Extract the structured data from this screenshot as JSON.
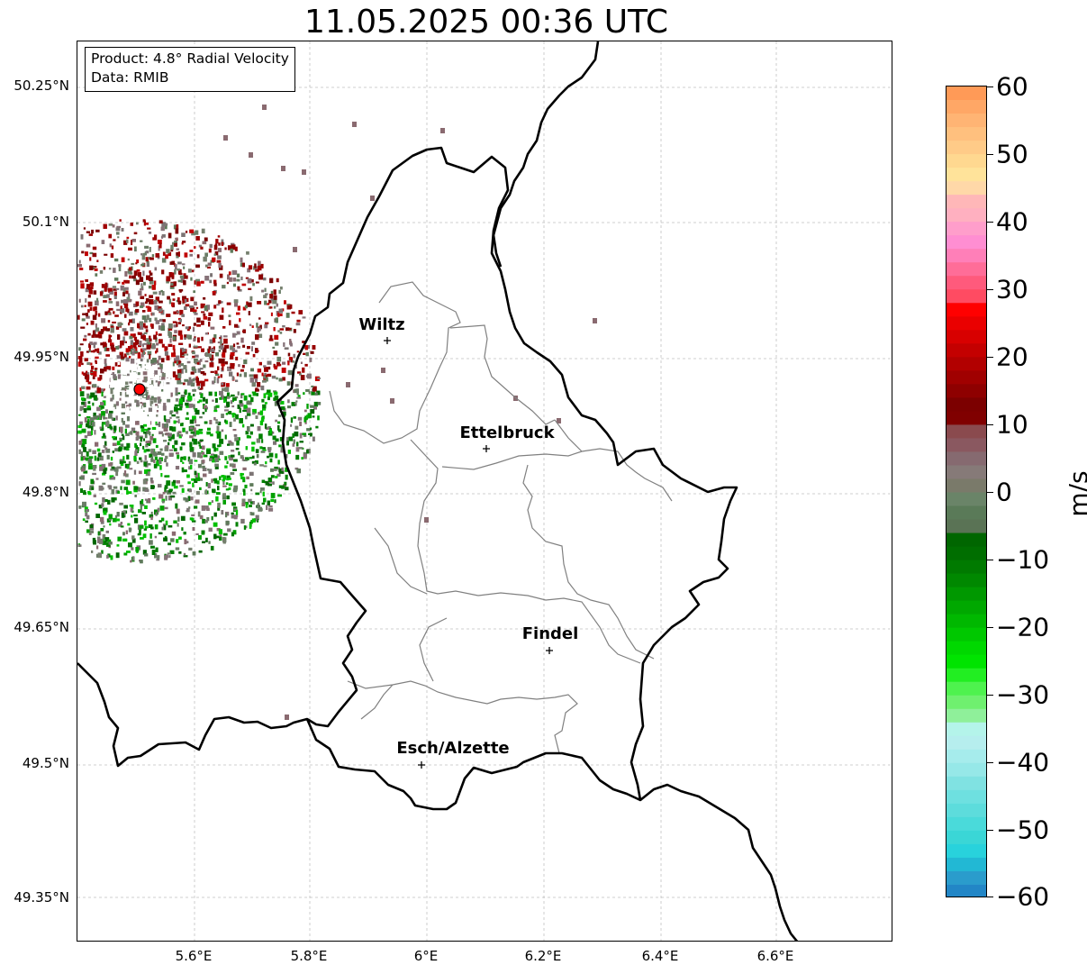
{
  "title": "11.05.2025 00:36 UTC",
  "info": {
    "product": "Product: 4.8° Radial Velocity",
    "data_source": "Data: RMIB"
  },
  "latitude_labels": [
    "50.25°N",
    "50.1°N",
    "49.95°N",
    "49.8°N",
    "49.65°N",
    "49.5°N",
    "49.35°N"
  ],
  "longitude_labels": [
    "5.6°E",
    "5.8°E",
    "6°E",
    "6.2°E",
    "6.4°E",
    "6.6°E"
  ],
  "cities": [
    {
      "name": "Wiltz"
    },
    {
      "name": "Ettelbruck"
    },
    {
      "name": "Findel"
    },
    {
      "name": "Esch/Alzette"
    }
  ],
  "colorbar": {
    "unit": "m/s",
    "ticks": [
      "60",
      "50",
      "40",
      "30",
      "20",
      "10",
      "0",
      "−10",
      "−20",
      "−30",
      "−40",
      "−50",
      "−60"
    ],
    "range": [
      -60,
      60
    ],
    "colors_top_to_bottom": [
      "#ff9a57",
      "#ffa766",
      "#ffb474",
      "#ffc07e",
      "#ffcb88",
      "#ffd890",
      "#ffe39a",
      "#ffd8a8",
      "#ffb7b8",
      "#ffb0c0",
      "#ff9ecb",
      "#ff8ed2",
      "#ff7fb8",
      "#ff6d98",
      "#ff5a7c",
      "#ff4b62",
      "#ff0000",
      "#ea0000",
      "#d80000",
      "#c40000",
      "#b20000",
      "#a00000",
      "#8e0000",
      "#7c0000",
      "#800000",
      "#8a4a4e",
      "#8a5860",
      "#866a70",
      "#867a78",
      "#7a7a6a",
      "#6a8468",
      "#5a7a58",
      "#5a7355",
      "#006600",
      "#006e00",
      "#007a00",
      "#008800",
      "#009800",
      "#00a800",
      "#00b800",
      "#00c800",
      "#00d800",
      "#00e400",
      "#22ee22",
      "#4ef24e",
      "#6ff06f",
      "#8ff09a",
      "#b4f4ea",
      "#b6eeee",
      "#a6ecec",
      "#96e8e8",
      "#80e2e2",
      "#6ee0e0",
      "#5ddcdc",
      "#4adada",
      "#3ad6d6",
      "#28d2dc",
      "#22b8d4",
      "#2a9ccc",
      "#2286c6"
    ]
  },
  "radar": {
    "site_marker_color": "#ff0000",
    "outbound_color": "#8b0000",
    "inbound_color": "#008000",
    "near_zero_color": "#7c7474"
  },
  "map_style": {
    "border_color": "#000000",
    "canton_color": "#808080",
    "grid_color": "#c0c0c0"
  }
}
